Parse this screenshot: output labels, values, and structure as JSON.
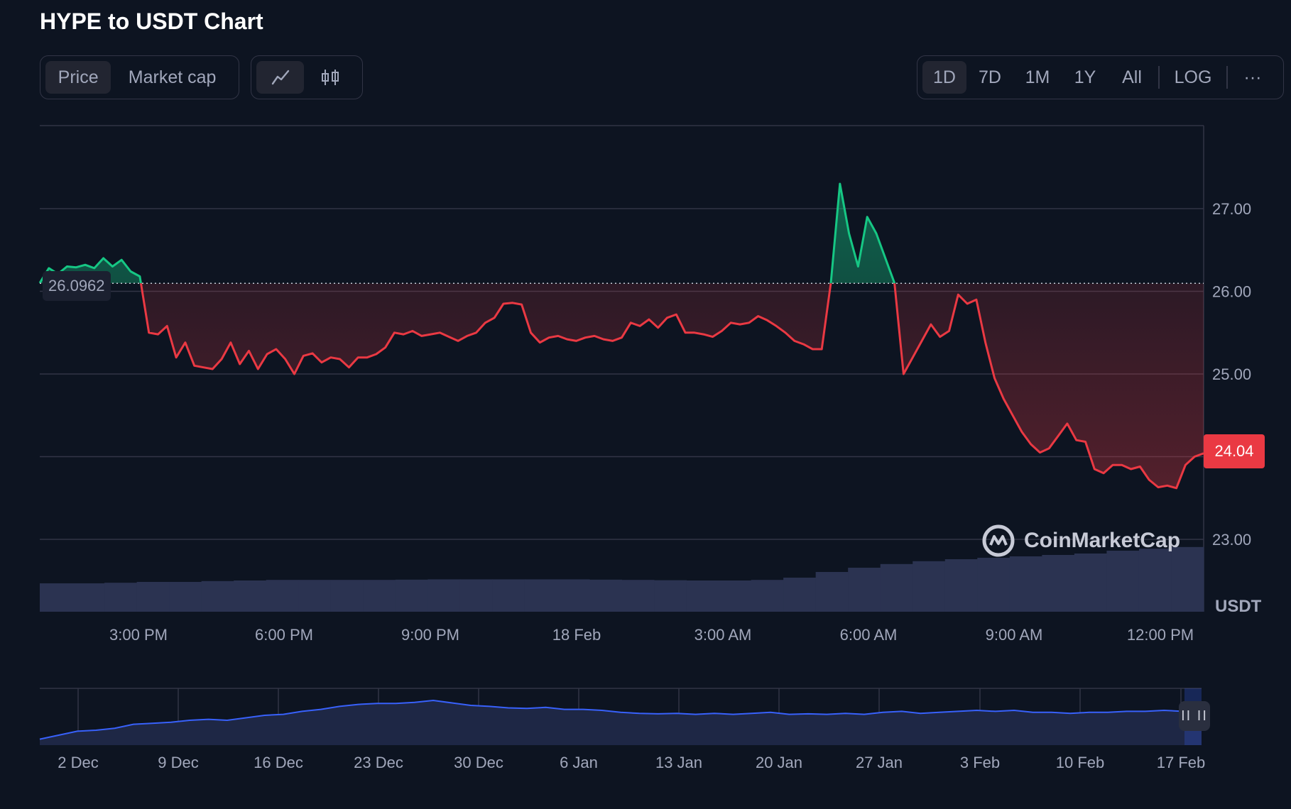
{
  "title": "HYPE to USDT Chart",
  "type_tabs": {
    "price": "Price",
    "market_cap": "Market cap"
  },
  "range_tabs": {
    "d1": "1D",
    "d7": "7D",
    "m1": "1M",
    "y1": "1Y",
    "all": "All",
    "log": "LOG",
    "more": "···"
  },
  "reference_price": "26.0962",
  "last_price_label": "24.04",
  "unit_label": "USDT",
  "watermark": "CoinMarketCap",
  "pause_glyph": "II II",
  "colors": {
    "up": "#16c784",
    "down": "#ea3943",
    "volume": "#2b3351",
    "navigator": "#3861fb",
    "grid": "#323546"
  },
  "chart_data": {
    "type": "line",
    "y_axis": {
      "ticks": [
        27.0,
        26.0,
        25.0,
        24.0,
        23.0
      ],
      "range": [
        22.0,
        28.0
      ],
      "unit": "USDT"
    },
    "x_axis": {
      "ticks": [
        "3:00 PM",
        "6:00 PM",
        "9:00 PM",
        "18 Feb",
        "3:00 AM",
        "6:00 AM",
        "9:00 AM",
        "12:00 PM"
      ]
    },
    "baseline": 26.0962,
    "series": [
      {
        "values": [
          26.1,
          26.28,
          26.21,
          26.3,
          26.29,
          26.32,
          26.28,
          26.4,
          26.3,
          26.38,
          26.24,
          26.18,
          25.5,
          25.48,
          25.58,
          25.2,
          25.38,
          25.1,
          25.08,
          25.06,
          25.18,
          25.38,
          25.12,
          25.28,
          25.06,
          25.24,
          25.3,
          25.18,
          25.0,
          25.22,
          25.25,
          25.14,
          25.2,
          25.18,
          25.08,
          25.2,
          25.2,
          25.24,
          25.32,
          25.5,
          25.48,
          25.52,
          25.46,
          25.48,
          25.5,
          25.45,
          25.4,
          25.46,
          25.5,
          25.62,
          25.68,
          25.85,
          25.86,
          25.84,
          25.5,
          25.38,
          25.44,
          25.46,
          25.42,
          25.4,
          25.44,
          25.46,
          25.42,
          25.4,
          25.44,
          25.62,
          25.58,
          25.66,
          25.56,
          25.68,
          25.72,
          25.5,
          25.5,
          25.48,
          25.45,
          25.52,
          25.62,
          25.6,
          25.62,
          25.7,
          25.65,
          25.58,
          25.5,
          25.4,
          25.36,
          25.3,
          25.3,
          26.1,
          27.3,
          26.7,
          26.3,
          26.9,
          26.7,
          26.4,
          26.1,
          25.0,
          25.2,
          25.4,
          25.6,
          25.45,
          25.52,
          25.96,
          25.85,
          25.9,
          25.38,
          24.95,
          24.7,
          24.5,
          24.3,
          24.15,
          24.05,
          24.1,
          24.25,
          24.4,
          24.2,
          24.18,
          23.85,
          23.8,
          23.9,
          23.9,
          23.85,
          23.88,
          23.72,
          23.63,
          23.65,
          23.62,
          23.9,
          24.0,
          24.04
        ]
      }
    ],
    "volume_series": [
      1.0,
      1.0,
      1.02,
      1.05,
      1.05,
      1.08,
      1.1,
      1.12,
      1.12,
      1.12,
      1.12,
      1.13,
      1.14,
      1.14,
      1.14,
      1.14,
      1.14,
      1.13,
      1.12,
      1.11,
      1.1,
      1.1,
      1.12,
      1.2,
      1.4,
      1.55,
      1.68,
      1.78,
      1.85,
      1.9,
      1.95,
      2.0,
      2.05,
      2.15,
      2.22,
      2.28
    ],
    "navigator": {
      "x_ticks": [
        "2 Dec",
        "9 Dec",
        "16 Dec",
        "23 Dec",
        "30 Dec",
        "6 Jan",
        "13 Jan",
        "20 Jan",
        "27 Jan",
        "3 Feb",
        "10 Feb",
        "17 Feb"
      ],
      "values": [
        0.12,
        0.2,
        0.28,
        0.3,
        0.34,
        0.42,
        0.44,
        0.46,
        0.5,
        0.52,
        0.5,
        0.55,
        0.6,
        0.62,
        0.68,
        0.72,
        0.78,
        0.82,
        0.84,
        0.84,
        0.86,
        0.9,
        0.85,
        0.8,
        0.78,
        0.75,
        0.74,
        0.76,
        0.72,
        0.72,
        0.7,
        0.66,
        0.64,
        0.63,
        0.64,
        0.62,
        0.64,
        0.62,
        0.64,
        0.66,
        0.62,
        0.63,
        0.62,
        0.64,
        0.62,
        0.66,
        0.68,
        0.64,
        0.66,
        0.68,
        0.7,
        0.68,
        0.7,
        0.66,
        0.66,
        0.64,
        0.66,
        0.66,
        0.68,
        0.68,
        0.7,
        0.68,
        0.7
      ]
    }
  }
}
